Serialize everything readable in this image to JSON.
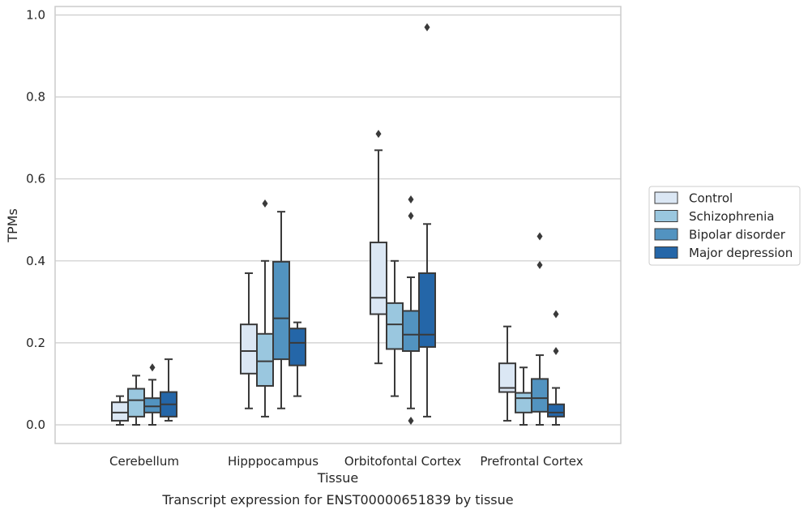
{
  "chart_data": {
    "type": "box",
    "title": "",
    "caption": "Transcript expression for ENST00000651839 by tissue",
    "xlabel": "Tissue",
    "ylabel": "TPMs",
    "ylim": [
      -0.047,
      1.02
    ],
    "yticks": [
      0.0,
      0.2,
      0.4,
      0.6,
      0.8,
      1.0
    ],
    "ytick_labels": [
      "0.0",
      "0.2",
      "0.4",
      "0.6",
      "0.8",
      "1.0"
    ],
    "grid": "horizontal",
    "legend_position": "right",
    "categories": [
      "Cerebellum",
      "Hipppocampus",
      "Orbitofontal Cortex",
      "Prefrontal Cortex"
    ],
    "series": [
      {
        "name": "Control",
        "color": "#dbe7f4",
        "boxes": [
          {
            "whisker_low": 0.0,
            "q1": 0.01,
            "median": 0.03,
            "q3": 0.055,
            "whisker_high": 0.07,
            "outliers": []
          },
          {
            "whisker_low": 0.04,
            "q1": 0.125,
            "median": 0.18,
            "q3": 0.245,
            "whisker_high": 0.37,
            "outliers": []
          },
          {
            "whisker_low": 0.15,
            "q1": 0.27,
            "median": 0.31,
            "q3": 0.445,
            "whisker_high": 0.67,
            "outliers": [
              0.71
            ]
          },
          {
            "whisker_low": 0.01,
            "q1": 0.08,
            "median": 0.09,
            "q3": 0.15,
            "whisker_high": 0.24,
            "outliers": []
          }
        ]
      },
      {
        "name": "Schizophrenia",
        "color": "#9ac7df",
        "boxes": [
          {
            "whisker_low": 0.0,
            "q1": 0.02,
            "median": 0.06,
            "q3": 0.088,
            "whisker_high": 0.12,
            "outliers": []
          },
          {
            "whisker_low": 0.02,
            "q1": 0.095,
            "median": 0.155,
            "q3": 0.222,
            "whisker_high": 0.4,
            "outliers": [
              0.54
            ]
          },
          {
            "whisker_low": 0.07,
            "q1": 0.185,
            "median": 0.245,
            "q3": 0.297,
            "whisker_high": 0.4,
            "outliers": []
          },
          {
            "whisker_low": 0.0,
            "q1": 0.03,
            "median": 0.065,
            "q3": 0.078,
            "whisker_high": 0.14,
            "outliers": []
          }
        ]
      },
      {
        "name": "Bipolar disorder",
        "color": "#5293c0",
        "boxes": [
          {
            "whisker_low": 0.0,
            "q1": 0.03,
            "median": 0.045,
            "q3": 0.065,
            "whisker_high": 0.11,
            "outliers": [
              0.14
            ]
          },
          {
            "whisker_low": 0.04,
            "q1": 0.16,
            "median": 0.26,
            "q3": 0.398,
            "whisker_high": 0.52,
            "outliers": []
          },
          {
            "whisker_low": 0.04,
            "q1": 0.18,
            "median": 0.22,
            "q3": 0.278,
            "whisker_high": 0.36,
            "outliers": [
              0.01,
              0.51,
              0.55
            ]
          },
          {
            "whisker_low": 0.0,
            "q1": 0.032,
            "median": 0.065,
            "q3": 0.112,
            "whisker_high": 0.17,
            "outliers": [
              0.39,
              0.46
            ]
          }
        ]
      },
      {
        "name": "Major depression",
        "color": "#2466a8",
        "boxes": [
          {
            "whisker_low": 0.01,
            "q1": 0.02,
            "median": 0.05,
            "q3": 0.08,
            "whisker_high": 0.16,
            "outliers": []
          },
          {
            "whisker_low": 0.07,
            "q1": 0.145,
            "median": 0.2,
            "q3": 0.235,
            "whisker_high": 0.25,
            "outliers": []
          },
          {
            "whisker_low": 0.02,
            "q1": 0.19,
            "median": 0.22,
            "q3": 0.37,
            "whisker_high": 0.49,
            "outliers": [
              0.97
            ]
          },
          {
            "whisker_low": 0.0,
            "q1": 0.02,
            "median": 0.03,
            "q3": 0.05,
            "whisker_high": 0.09,
            "outliers": [
              0.18,
              0.27
            ]
          }
        ]
      }
    ]
  },
  "colors": {
    "grid": "#cccccc",
    "frame": "#cccccc",
    "edge": "#3a3a3a"
  }
}
